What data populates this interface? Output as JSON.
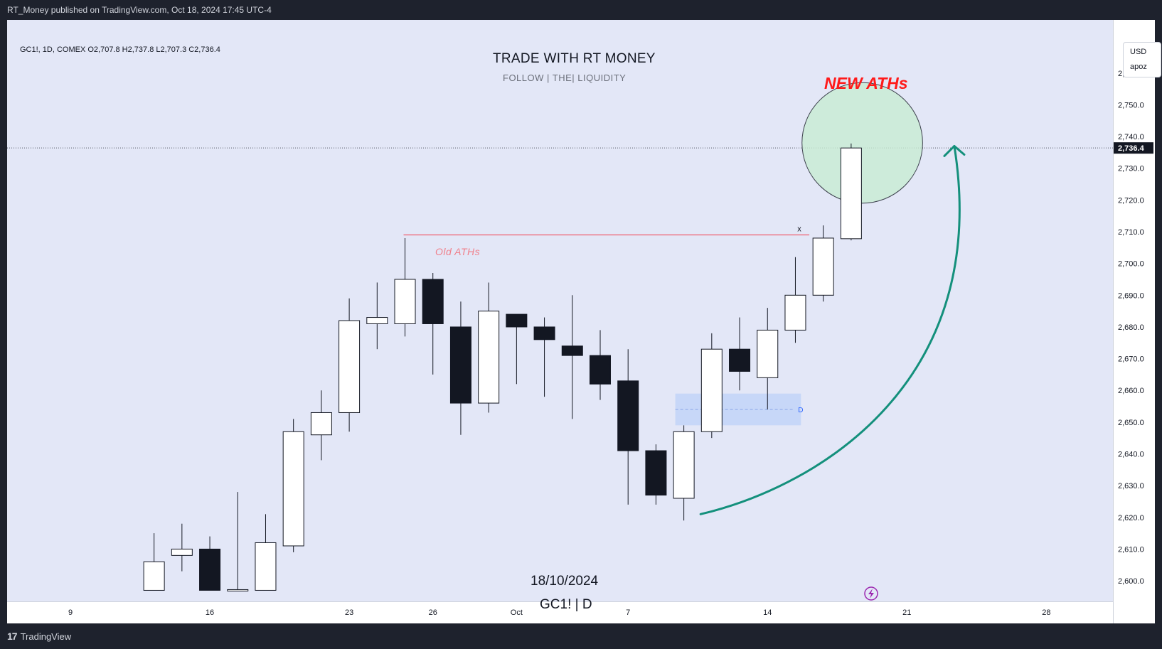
{
  "publisher_line": "RT_Money published on TradingView.com, Oct 18, 2024 17:45 UTC-4",
  "symbol_info": "GC1!, 1D, COMEX  O2,707.8  H2,737.8  L2,707.3  C2,736.4",
  "watermark": {
    "title": "TRADE WITH RT MONEY",
    "subtitle": "FOLLOW   |   THE|   LIQUIDITY",
    "date": "18/10/2024",
    "symbol": "GC1! | D"
  },
  "annotations": {
    "new_ath": "NEW ATHs",
    "old_ath": "Old ATHs",
    "old_ath_marker": "x",
    "zone_label": "D"
  },
  "price_scale": {
    "currency": "USD",
    "unit_label": "apoz",
    "current_price_label": "2,736.4"
  },
  "branding": {
    "logo_text": "TradingView",
    "logo_mark": "17"
  },
  "colors": {
    "up_body": "#ffffff",
    "down_body": "#131722",
    "wick": "#131722",
    "background": "#e3e7f7",
    "old_ath_line": "#f23645",
    "arrow": "#14907c",
    "circle_fill": "#c8ecd3",
    "zone_fill": "#c2d3f8",
    "axis_text": "#131722"
  },
  "chart_data": {
    "type": "candlestick",
    "title": "TRADE WITH RT MONEY",
    "ylim": [
      2597,
      2778
    ],
    "y_ticks": [
      {
        "value": 2600,
        "label": "2,600.0"
      },
      {
        "value": 2610,
        "label": "2,610.0"
      },
      {
        "value": 2620,
        "label": "2,620.0"
      },
      {
        "value": 2630,
        "label": "2,630.0"
      },
      {
        "value": 2640,
        "label": "2,640.0"
      },
      {
        "value": 2650,
        "label": "2,650.0"
      },
      {
        "value": 2660,
        "label": "2,660.0"
      },
      {
        "value": 2670,
        "label": "2,670.0"
      },
      {
        "value": 2680,
        "label": "2,680.0"
      },
      {
        "value": 2690,
        "label": "2,690.0"
      },
      {
        "value": 2700,
        "label": "2,700.0"
      },
      {
        "value": 2710,
        "label": "2,710.0"
      },
      {
        "value": 2720,
        "label": "2,720.0"
      },
      {
        "value": 2730,
        "label": "2,730.0"
      },
      {
        "value": 2740,
        "label": "2,740.0"
      },
      {
        "value": 2750,
        "label": "2,750.0"
      },
      {
        "value": 2760,
        "label": "2,760.0"
      }
    ],
    "x_ticks": [
      {
        "index": -2,
        "label": "9"
      },
      {
        "index": 3,
        "label": "16"
      },
      {
        "index": 8,
        "label": "23"
      },
      {
        "index": 11,
        "label": "26"
      },
      {
        "index": 14,
        "label": "Oct"
      },
      {
        "index": 18,
        "label": "7"
      },
      {
        "index": 23,
        "label": "14"
      },
      {
        "index": 28,
        "label": "21"
      },
      {
        "index": 33,
        "label": "28"
      }
    ],
    "x_range": [
      -4.05,
      35.8
    ],
    "last_price": 2736.4,
    "candles": [
      {
        "i": 1,
        "o": 2597,
        "h": 2615,
        "l": 2597,
        "c": 2606
      },
      {
        "i": 2,
        "o": 2608,
        "h": 2618,
        "l": 2603,
        "c": 2610
      },
      {
        "i": 3,
        "o": 2610,
        "h": 2614,
        "l": 2597,
        "c": 2597
      },
      {
        "i": 4,
        "o": 2597,
        "h": 2628,
        "l": 2597,
        "c": 2597
      },
      {
        "i": 5,
        "o": 2597,
        "h": 2621,
        "l": 2597,
        "c": 2612
      },
      {
        "i": 6,
        "o": 2611,
        "h": 2651,
        "l": 2609,
        "c": 2647
      },
      {
        "i": 7,
        "o": 2646,
        "h": 2660,
        "l": 2638,
        "c": 2653
      },
      {
        "i": 8,
        "o": 2653,
        "h": 2689,
        "l": 2647,
        "c": 2682
      },
      {
        "i": 9,
        "o": 2681,
        "h": 2694,
        "l": 2673,
        "c": 2683
      },
      {
        "i": 10,
        "o": 2681,
        "h": 2708,
        "l": 2677,
        "c": 2695
      },
      {
        "i": 11,
        "o": 2695,
        "h": 2697,
        "l": 2665,
        "c": 2681
      },
      {
        "i": 12,
        "o": 2680,
        "h": 2688,
        "l": 2646,
        "c": 2656
      },
      {
        "i": 13,
        "o": 2656,
        "h": 2694,
        "l": 2653,
        "c": 2685
      },
      {
        "i": 14,
        "o": 2684,
        "h": 2684,
        "l": 2662,
        "c": 2680
      },
      {
        "i": 15,
        "o": 2680,
        "h": 2683,
        "l": 2658,
        "c": 2676
      },
      {
        "i": 16,
        "o": 2674,
        "h": 2690,
        "l": 2651,
        "c": 2671
      },
      {
        "i": 17,
        "o": 2671,
        "h": 2679,
        "l": 2657,
        "c": 2662
      },
      {
        "i": 18,
        "o": 2663,
        "h": 2673,
        "l": 2624,
        "c": 2641
      },
      {
        "i": 19,
        "o": 2641,
        "h": 2643,
        "l": 2624,
        "c": 2627
      },
      {
        "i": 20,
        "o": 2626,
        "h": 2649,
        "l": 2619,
        "c": 2647
      },
      {
        "i": 21,
        "o": 2647,
        "h": 2678,
        "l": 2645,
        "c": 2673
      },
      {
        "i": 22,
        "o": 2673,
        "h": 2683,
        "l": 2660,
        "c": 2666
      },
      {
        "i": 23,
        "o": 2664,
        "h": 2686,
        "l": 2654,
        "c": 2679
      },
      {
        "i": 24,
        "o": 2679,
        "h": 2702,
        "l": 2675,
        "c": 2690
      },
      {
        "i": 25,
        "o": 2690,
        "h": 2712,
        "l": 2688,
        "c": 2708
      },
      {
        "i": 26,
        "o": 2707.8,
        "h": 2737.8,
        "l": 2707.3,
        "c": 2736.4
      }
    ],
    "old_ath_level": 2709,
    "demand_zone": {
      "from_index": 20,
      "to_index": 24.2,
      "low": 2649,
      "high": 2659,
      "mid": 2654
    },
    "highlight_circle": {
      "center_index": 26.4,
      "center_price": 2738,
      "radius_price": 19
    },
    "arrow_path": [
      {
        "index": 20.6,
        "price": 2621
      },
      {
        "index": 29,
        "price": 2650
      },
      {
        "index": 29.7,
        "price": 2737
      }
    ]
  }
}
